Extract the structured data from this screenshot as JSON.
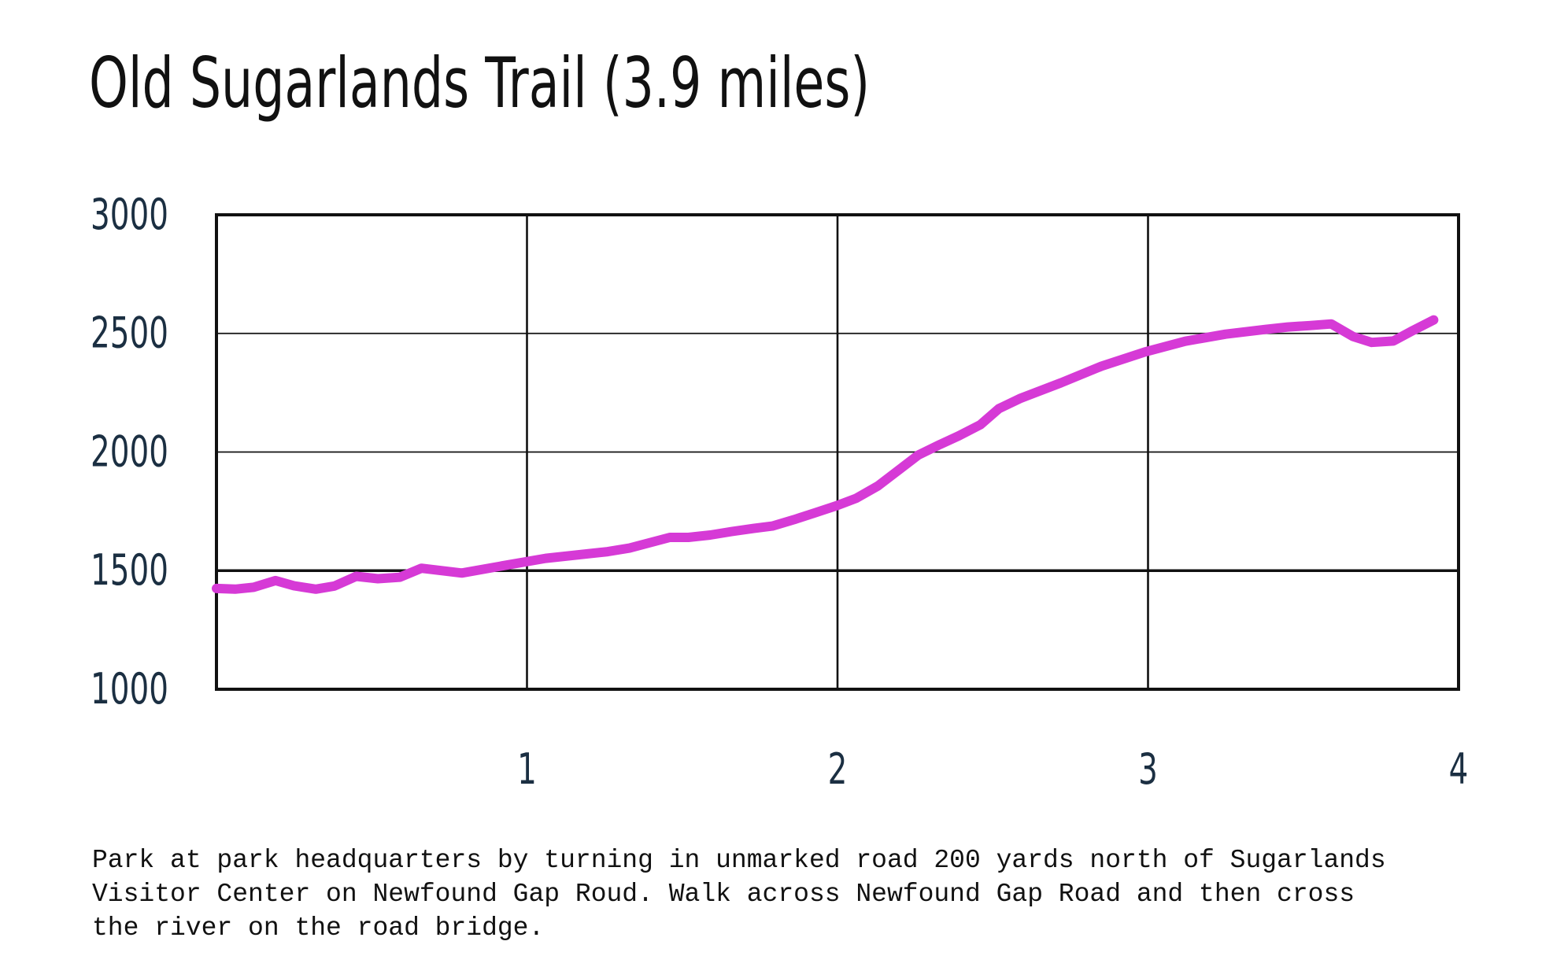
{
  "chart_data": {
    "type": "line",
    "title": "Old Sugarlands Trail (3.9 miles)",
    "xlabel": "",
    "ylabel": "",
    "xlim": [
      0,
      4
    ],
    "ylim": [
      1000,
      3000
    ],
    "x_ticks": [
      1,
      2,
      3,
      4
    ],
    "y_ticks": [
      3000,
      2500,
      2000,
      1500,
      1000
    ],
    "grid": true,
    "legend": "none",
    "series": [
      {
        "color": "#d63ad6",
        "x": [
          0.0,
          0.06,
          0.12,
          0.19,
          0.25,
          0.32,
          0.38,
          0.45,
          0.52,
          0.59,
          0.66,
          0.79,
          0.92,
          1.06,
          1.26,
          1.33,
          1.46,
          1.52,
          1.59,
          1.66,
          1.73,
          1.79,
          1.86,
          1.93,
          2.0,
          2.06,
          2.13,
          2.19,
          2.26,
          2.33,
          2.39,
          2.46,
          2.52,
          2.59,
          2.72,
          2.85,
          2.99,
          3.12,
          3.25,
          3.38,
          3.45,
          3.52,
          3.59,
          3.66,
          3.72,
          3.79,
          3.85,
          3.92
        ],
        "y": [
          1425,
          1422,
          1430,
          1458,
          1436,
          1422,
          1435,
          1476,
          1466,
          1472,
          1510,
          1490,
          1520,
          1552,
          1580,
          1595,
          1640,
          1640,
          1650,
          1665,
          1678,
          1688,
          1715,
          1745,
          1775,
          1805,
          1857,
          1917,
          1987,
          2032,
          2068,
          2115,
          2183,
          2227,
          2292,
          2362,
          2422,
          2467,
          2497,
          2517,
          2527,
          2533,
          2540,
          2487,
          2462,
          2468,
          2510,
          2557
        ]
      }
    ]
  },
  "description": "Park at park headquarters by turning in unmarked road 200 yards north of Sugarlands\nVisitor Center on Newfound Gap Roud. Walk across Newfound Gap Road and then cross\nthe river on the road bridge."
}
